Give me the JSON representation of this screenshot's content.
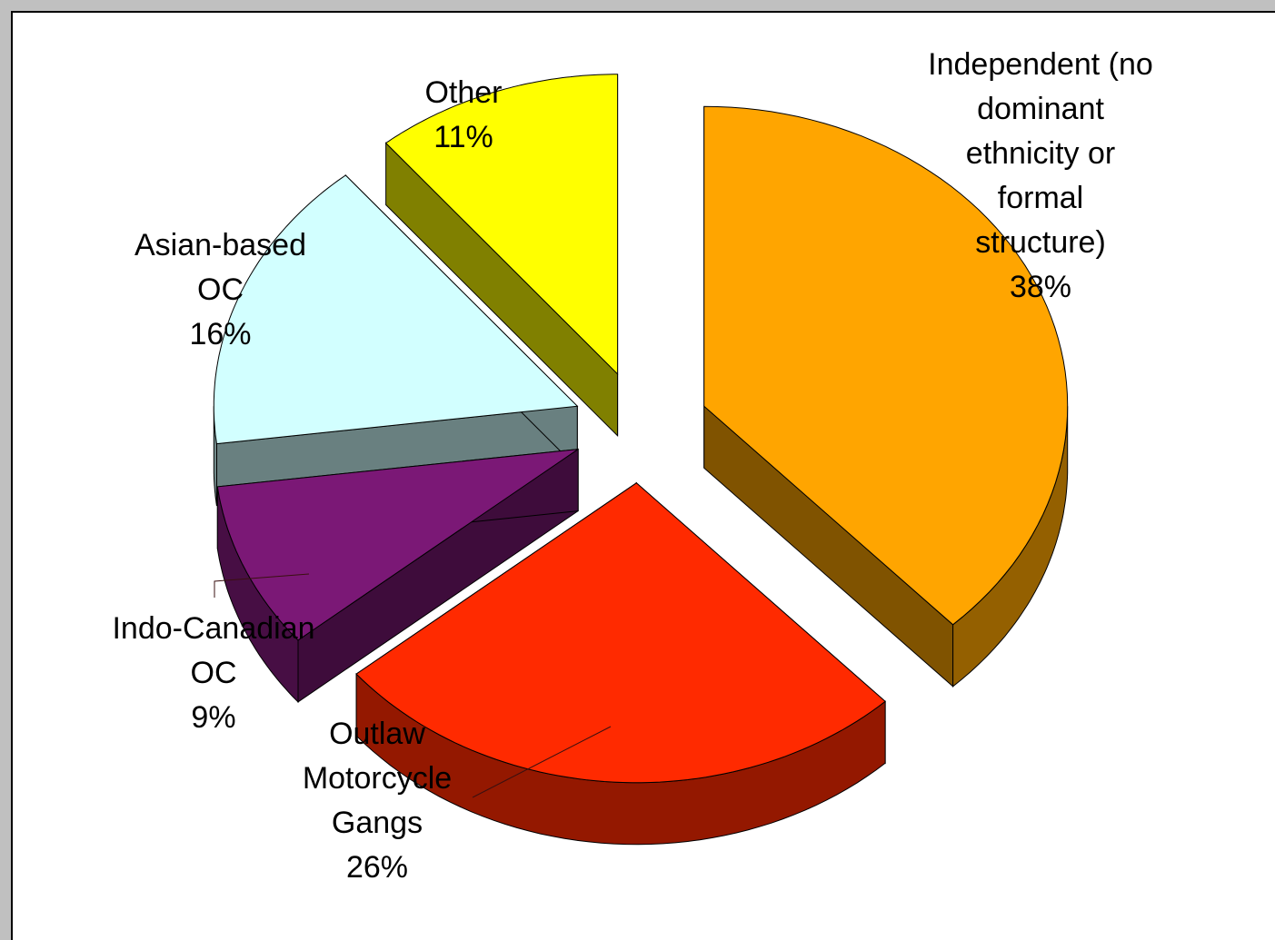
{
  "chart_data": {
    "type": "pie",
    "three_d": true,
    "exploded": true,
    "legend": "none",
    "slices": [
      {
        "label_lines": [
          "Independent (no",
          "dominant",
          "ethnicity or",
          "formal",
          "structure)"
        ],
        "pct_text": "38%",
        "value": 38,
        "color": "#ffa500"
      },
      {
        "label_lines": [
          "Outlaw",
          "Motorcycle",
          "Gangs"
        ],
        "pct_text": "26%",
        "value": 26,
        "color": "#ff2a00"
      },
      {
        "label_lines": [
          "Indo-Canadian",
          "OC"
        ],
        "pct_text": "9%",
        "value": 9,
        "color": "#7b1876"
      },
      {
        "label_lines": [
          "Asian-based",
          "OC"
        ],
        "pct_text": "16%",
        "value": 16,
        "color": "#d2ffff"
      },
      {
        "label_lines": [
          "Other"
        ],
        "pct_text": "11%",
        "value": 11,
        "color": "#ffff00"
      }
    ]
  }
}
